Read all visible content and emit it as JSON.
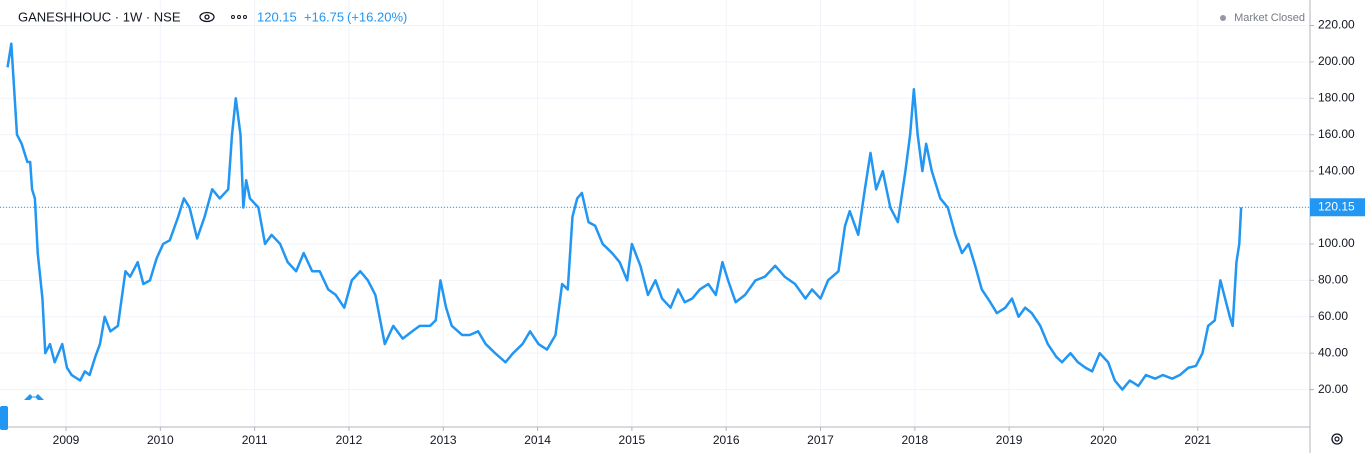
{
  "chart_data": {
    "type": "line",
    "symbol": "GANESHHOUC · 1W · NSE",
    "last_price": {
      "value": 120.15,
      "label": "120.15"
    },
    "change": {
      "value": 16.75,
      "label": "+16.75"
    },
    "change_percent": {
      "value": 16.2,
      "label": "(+16.20%)"
    },
    "status": "Market Closed",
    "color": "#2196f3",
    "grid": true,
    "xlim": [
      2008.3,
      2022.19
    ],
    "xticks": [
      2009,
      2010,
      2011,
      2012,
      2013,
      2014,
      2015,
      2016,
      2017,
      2018,
      2019,
      2020,
      2021
    ],
    "ylim": [
      0,
      234
    ],
    "yticks": [
      {
        "value": 20,
        "label": "20.00"
      },
      {
        "value": 40,
        "label": "40.00"
      },
      {
        "value": 60,
        "label": "60.00"
      },
      {
        "value": 80,
        "label": "80.00"
      },
      {
        "value": 100,
        "label": "100.00"
      },
      {
        "value": 120,
        "label": "120.00"
      },
      {
        "value": 140,
        "label": "140.00"
      },
      {
        "value": 160,
        "label": "160.00"
      },
      {
        "value": 180,
        "label": "180.00"
      },
      {
        "value": 200,
        "label": "200.00"
      },
      {
        "value": 220,
        "label": "220.00"
      }
    ],
    "x": [
      2008.38,
      2008.42,
      2008.45,
      2008.48,
      2008.53,
      2008.59,
      2008.62,
      2008.64,
      2008.67,
      2008.7,
      2008.75,
      2008.78,
      2008.83,
      2008.88,
      2008.96,
      2009.01,
      2009.06,
      2009.15,
      2009.2,
      2009.25,
      2009.31,
      2009.36,
      2009.41,
      2009.47,
      2009.55,
      2009.63,
      2009.68,
      2009.76,
      2009.82,
      2009.89,
      2009.96,
      2010.03,
      2010.1,
      2010.19,
      2010.25,
      2010.31,
      2010.39,
      2010.47,
      2010.55,
      2010.63,
      2010.72,
      2010.76,
      2010.8,
      2010.85,
      2010.88,
      2010.91,
      2010.95,
      2011.04,
      2011.11,
      2011.18,
      2011.27,
      2011.35,
      2011.44,
      2011.52,
      2011.61,
      2011.69,
      2011.78,
      2011.86,
      2011.95,
      2012.03,
      2012.12,
      2012.2,
      2012.28,
      2012.38,
      2012.47,
      2012.57,
      2012.67,
      2012.75,
      2012.86,
      2012.92,
      2012.97,
      2013.03,
      2013.09,
      2013.2,
      2013.28,
      2013.37,
      2013.45,
      2013.55,
      2013.66,
      2013.74,
      2013.84,
      2013.92,
      2014.01,
      2014.1,
      2014.19,
      2014.26,
      2014.32,
      2014.37,
      2014.42,
      2014.47,
      2014.54,
      2014.61,
      2014.69,
      2014.79,
      2014.87,
      2014.95,
      2015.0,
      2015.09,
      2015.17,
      2015.25,
      2015.32,
      2015.41,
      2015.49,
      2015.56,
      2015.64,
      2015.72,
      2015.81,
      2015.89,
      2015.96,
      2016.02,
      2016.1,
      2016.2,
      2016.31,
      2016.41,
      2016.52,
      2016.62,
      2016.73,
      2016.84,
      2016.91,
      2017.0,
      2017.08,
      2017.19,
      2017.26,
      2017.31,
      2017.4,
      2017.47,
      2017.53,
      2017.59,
      2017.66,
      2017.74,
      2017.82,
      2017.9,
      2017.95,
      2017.99,
      2018.03,
      2018.08,
      2018.12,
      2018.18,
      2018.27,
      2018.35,
      2018.43,
      2018.5,
      2018.57,
      2018.64,
      2018.71,
      2018.8,
      2018.87,
      2018.96,
      2019.03,
      2019.1,
      2019.17,
      2019.24,
      2019.33,
      2019.41,
      2019.5,
      2019.56,
      2019.65,
      2019.73,
      2019.81,
      2019.88,
      2019.96,
      2020.05,
      2020.12,
      2020.2,
      2020.28,
      2020.37,
      2020.45,
      2020.55,
      2020.63,
      2020.73,
      2020.81,
      2020.9,
      2020.98,
      2021.05,
      2021.11,
      2021.18,
      2021.24,
      2021.29,
      2021.34,
      2021.37,
      2021.41,
      2021.44,
      2021.46
    ],
    "values": [
      197,
      210,
      185,
      160,
      155,
      145,
      145,
      130,
      125,
      95,
      70,
      40,
      45,
      35,
      45,
      32,
      28,
      25,
      30,
      28,
      38,
      45,
      60,
      52,
      55,
      85,
      82,
      90,
      78,
      80,
      92,
      100,
      102,
      115,
      125,
      120,
      103,
      115,
      130,
      125,
      130,
      160,
      180,
      160,
      120,
      135,
      125,
      120,
      100,
      105,
      100,
      90,
      85,
      95,
      85,
      85,
      75,
      72,
      65,
      80,
      85,
      80,
      72,
      45,
      55,
      48,
      52,
      55,
      55,
      58,
      80,
      65,
      55,
      50,
      50,
      52,
      45,
      40,
      35,
      40,
      45,
      52,
      45,
      42,
      50,
      78,
      75,
      115,
      125,
      128,
      112,
      110,
      100,
      95,
      90,
      80,
      100,
      88,
      72,
      80,
      70,
      65,
      75,
      68,
      70,
      75,
      78,
      72,
      90,
      80,
      68,
      72,
      80,
      82,
      88,
      82,
      78,
      70,
      75,
      70,
      80,
      85,
      110,
      118,
      105,
      130,
      150,
      130,
      140,
      120,
      112,
      140,
      160,
      185,
      160,
      140,
      155,
      140,
      125,
      120,
      105,
      95,
      100,
      88,
      75,
      68,
      62,
      65,
      70,
      60,
      65,
      62,
      55,
      45,
      38,
      35,
      40,
      35,
      32,
      30,
      40,
      35,
      25,
      20,
      25,
      22,
      28,
      26,
      28,
      26,
      28,
      32,
      33,
      40,
      55,
      58,
      80,
      70,
      60,
      55,
      90,
      100,
      120.15
    ]
  }
}
